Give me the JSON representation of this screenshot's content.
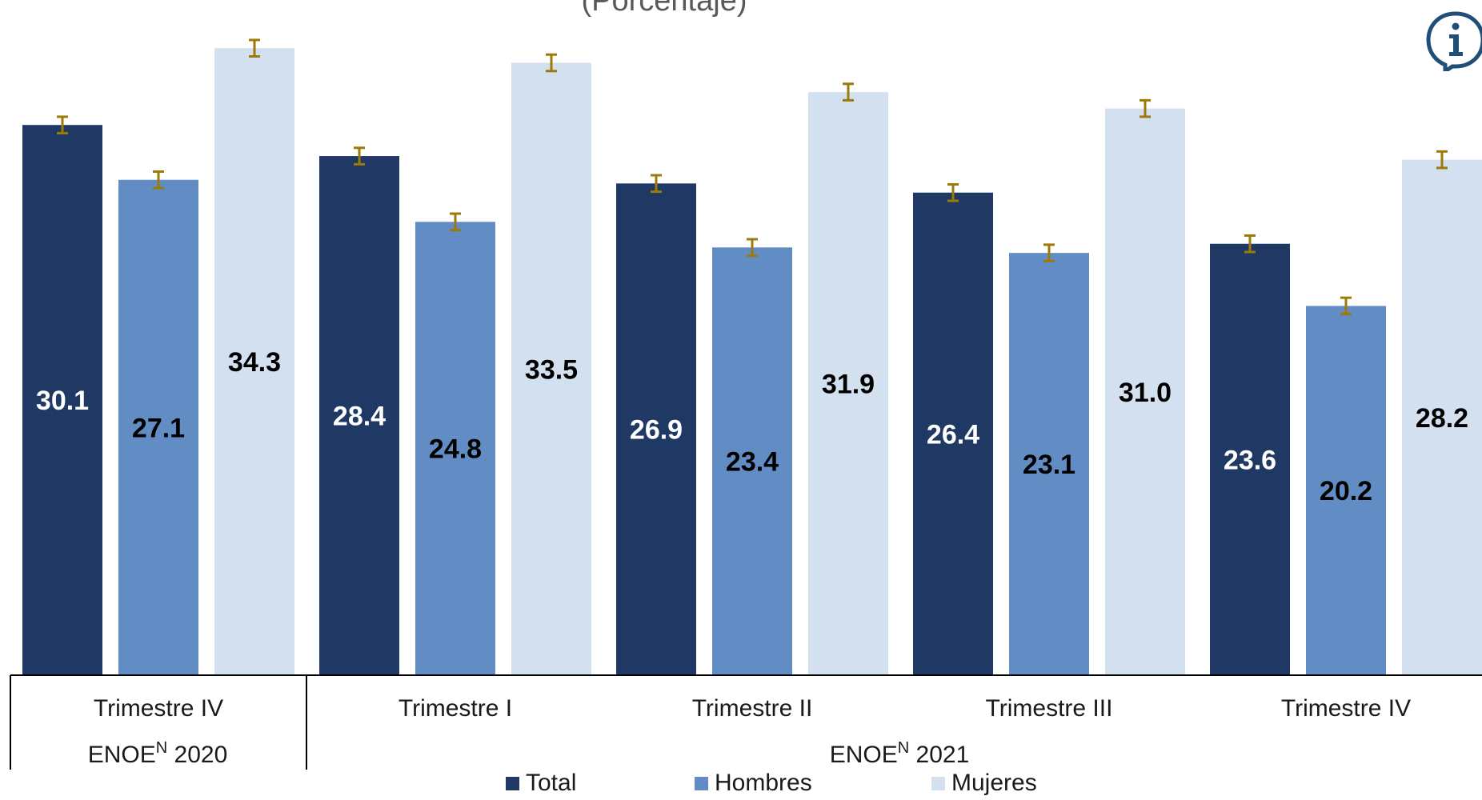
{
  "subtitle": "(Porcentaje)",
  "chart_data": {
    "type": "bar",
    "series": [
      {
        "name": "Total",
        "color": "#203864",
        "values": [
          30.1,
          28.4,
          26.9,
          26.4,
          23.6
        ]
      },
      {
        "name": "Hombres",
        "color": "#618DC4",
        "values": [
          27.1,
          24.8,
          23.4,
          23.1,
          20.2
        ]
      },
      {
        "name": "Mujeres",
        "color": "#D3E0EF",
        "values": [
          34.3,
          33.5,
          31.9,
          31.0,
          28.2
        ]
      }
    ],
    "error_bar_color": "#9C7A08",
    "error_margin": 0.45,
    "categories": [
      "Trimestre IV",
      "Trimestre I",
      "Trimestre II",
      "Trimestre III",
      "Trimestre IV"
    ],
    "groups": [
      {
        "prefix": "ENOE",
        "sup": "N",
        "suffix": " 2020",
        "span": 1
      },
      {
        "prefix": "ENOE",
        "sup": "N",
        "suffix": " 2021",
        "span": 4
      }
    ],
    "ylim": [
      0,
      37
    ],
    "legend_position": "bottom",
    "label_colors": {
      "Total": "#ffffff",
      "Hombres": "#000000",
      "Mujeres": "#000000"
    }
  },
  "legend": [
    {
      "label": "Total",
      "color": "#203864"
    },
    {
      "label": "Hombres",
      "color": "#618DC4"
    },
    {
      "label": "Mujeres",
      "color": "#D3E0EF"
    }
  ],
  "info_icon": {
    "name": "info-icon",
    "color": "#1F4E79"
  }
}
